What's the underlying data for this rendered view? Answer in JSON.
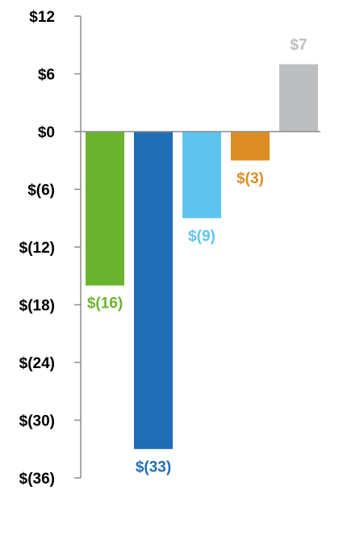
{
  "chart_data": {
    "type": "bar",
    "categories": [
      "",
      "",
      "",
      "",
      ""
    ],
    "values": [
      -16,
      -33,
      -9,
      -3,
      7
    ],
    "value_labels": [
      "$(16)",
      "$(33)",
      "$(9)",
      "$(3)",
      "$7"
    ],
    "colors": [
      "#6ab42d",
      "#1f6db5",
      "#5ec4ef",
      "#dc8e24",
      "#bdbebf"
    ],
    "label_colors": [
      "#6ab42d",
      "#1f6db5",
      "#5ec4ef",
      "#dc8e24",
      "#bdbebf"
    ],
    "yticks": [
      12,
      6,
      0,
      -6,
      -12,
      -18,
      -24,
      -30,
      -36
    ],
    "ytick_labels": [
      "$12",
      "$6",
      "$0",
      "$(6)",
      "$(12)",
      "$(18)",
      "$(24)",
      "$(30)",
      "$(36)"
    ],
    "ylim": [
      -36,
      12
    ],
    "grid": false,
    "title": "",
    "xlabel": "",
    "ylabel": ""
  }
}
